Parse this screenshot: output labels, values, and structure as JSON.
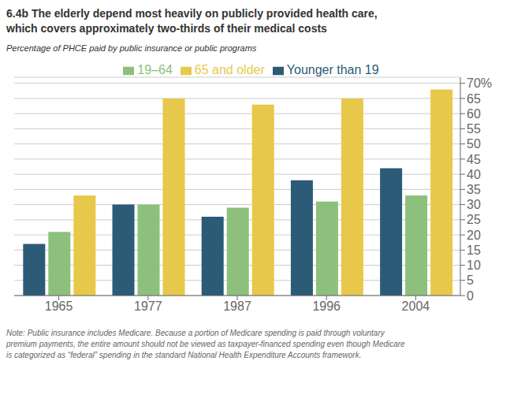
{
  "chart_data": {
    "type": "bar",
    "title": "6.4b  The elderly depend most heavily on publicly provided health care,\nwhich covers approximately two-thirds of their medical costs",
    "ylabel": "Percentage of PHCE paid by public insurance or public programs",
    "annotations": [
      "Note: Public insurance includes Medicare. Because a portion of Medicare spending is paid through voluntary\npremium payments, the entire amount should not be viewed as taxpayer-financed spending even though Medicare\nis categorized as “federal” spending in the standard National Health Expenditure Accounts framework."
    ],
    "categories": [
      "1965",
      "1977",
      "1987",
      "1996",
      "2004"
    ],
    "series": [
      {
        "name": "Younger than 19",
        "color": "#2B5B77",
        "values": [
          17,
          30,
          26,
          38,
          42
        ]
      },
      {
        "name": "19–64",
        "color": "#8DC07C",
        "values": [
          21,
          30,
          29,
          31,
          33
        ]
      },
      {
        "name": "65 and older",
        "color": "#E8C84A",
        "values": [
          33,
          65,
          63,
          65,
          68
        ]
      }
    ],
    "ylim": [
      0,
      72
    ],
    "yticks": [
      0,
      5,
      10,
      15,
      20,
      25,
      30,
      35,
      40,
      45,
      50,
      55,
      60,
      65,
      {
        "value": 70,
        "label": "70%"
      }
    ],
    "grid": true,
    "legend": "top"
  }
}
